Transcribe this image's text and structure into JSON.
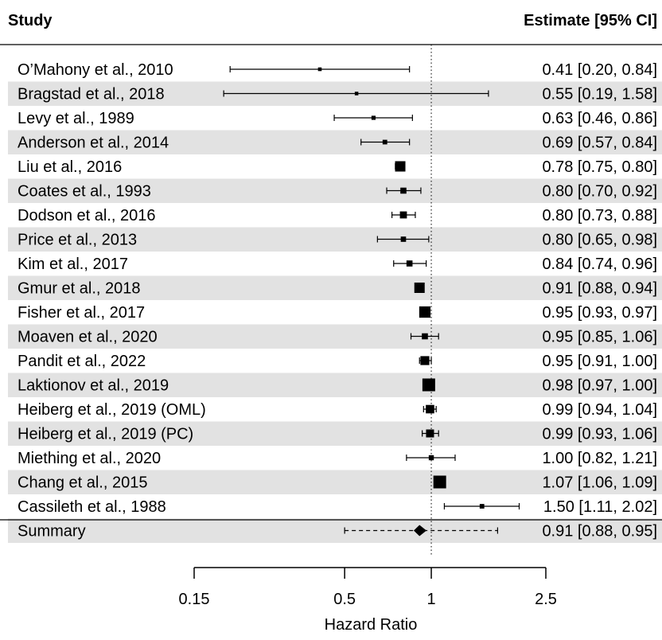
{
  "chart_data": {
    "type": "forest",
    "header": {
      "study": "Study",
      "estimate": "Estimate [95% CI]"
    },
    "xlabel": "Hazard Ratio",
    "x_scale": "log",
    "reference_line": 1,
    "xlim": [
      0.15,
      2.5
    ],
    "ticks": [
      {
        "value": 0.15,
        "label": "0.15"
      },
      {
        "value": 0.5,
        "label": "0.5"
      },
      {
        "value": 1,
        "label": "1"
      },
      {
        "value": 2.5,
        "label": "2.5"
      }
    ],
    "studies": [
      {
        "name": "O’Mahony et al., 2010",
        "est": 0.41,
        "lo": 0.2,
        "hi": 0.84,
        "text": "0.41 [0.20, 0.84]",
        "weight": 0.05
      },
      {
        "name": "Bragstad et al., 2018",
        "est": 0.55,
        "lo": 0.19,
        "hi": 1.58,
        "text": "0.55 [0.19, 1.58]",
        "weight": 0.04
      },
      {
        "name": "Levy et al., 1989",
        "est": 0.63,
        "lo": 0.46,
        "hi": 0.86,
        "text": "0.63 [0.46, 0.86]",
        "weight": 0.1
      },
      {
        "name": "Anderson et al., 2014",
        "est": 0.69,
        "lo": 0.57,
        "hi": 0.84,
        "text": "0.69 [0.57, 0.84]",
        "weight": 0.15
      },
      {
        "name": "Liu et al., 2016",
        "est": 0.78,
        "lo": 0.75,
        "hi": 0.8,
        "text": "0.78 [0.75, 0.80]",
        "weight": 0.75
      },
      {
        "name": "Coates et al., 1993",
        "est": 0.8,
        "lo": 0.7,
        "hi": 0.92,
        "text": "0.80 [0.70, 0.92]",
        "weight": 0.3
      },
      {
        "name": "Dodson et al., 2016",
        "est": 0.8,
        "lo": 0.73,
        "hi": 0.88,
        "text": "0.80 [0.73, 0.88]",
        "weight": 0.4
      },
      {
        "name": "Price et al., 2013",
        "est": 0.8,
        "lo": 0.65,
        "hi": 0.98,
        "text": "0.80 [0.65, 0.98]",
        "weight": 0.22
      },
      {
        "name": "Kim et al., 2017",
        "est": 0.84,
        "lo": 0.74,
        "hi": 0.96,
        "text": "0.84 [0.74, 0.96]",
        "weight": 0.3
      },
      {
        "name": "Gmur et al., 2018",
        "est": 0.91,
        "lo": 0.88,
        "hi": 0.94,
        "text": "0.91 [0.88, 0.94]",
        "weight": 0.75
      },
      {
        "name": "Fisher et al., 2017",
        "est": 0.95,
        "lo": 0.93,
        "hi": 0.97,
        "text": "0.95 [0.93, 0.97]",
        "weight": 0.85
      },
      {
        "name": "Moaven et al., 2020",
        "est": 0.95,
        "lo": 0.85,
        "hi": 1.06,
        "text": "0.95 [0.85, 1.06]",
        "weight": 0.3
      },
      {
        "name": "Pandit et al., 2022",
        "est": 0.95,
        "lo": 0.91,
        "hi": 1.0,
        "text": "0.95 [0.91, 1.00]",
        "weight": 0.6
      },
      {
        "name": "Laktionov et al., 2019",
        "est": 0.98,
        "lo": 0.97,
        "hi": 1.0,
        "text": "0.98 [0.97, 1.00]",
        "weight": 1.0
      },
      {
        "name": "Heiberg et al., 2019 (OML)",
        "est": 0.99,
        "lo": 0.94,
        "hi": 1.04,
        "text": "0.99 [0.94, 1.04]",
        "weight": 0.55
      },
      {
        "name": "Heiberg et al., 2019 (PC)",
        "est": 0.99,
        "lo": 0.93,
        "hi": 1.06,
        "text": "0.99 [0.93, 1.06]",
        "weight": 0.5
      },
      {
        "name": "Miething et al., 2020",
        "est": 1.0,
        "lo": 0.82,
        "hi": 1.21,
        "text": "1.00 [0.82, 1.21]",
        "weight": 0.2
      },
      {
        "name": "Chang et al., 2015",
        "est": 1.07,
        "lo": 1.06,
        "hi": 1.09,
        "text": "1.07 [1.06, 1.09]",
        "weight": 1.0
      },
      {
        "name": "Cassileth et al., 1988",
        "est": 1.5,
        "lo": 1.11,
        "hi": 2.02,
        "text": "1.50 [1.11, 2.02]",
        "weight": 0.15
      }
    ],
    "summary": {
      "name": "Summary",
      "est": 0.91,
      "lo": 0.88,
      "hi": 0.95,
      "pi_lo": 0.5,
      "pi_hi": 1.7,
      "text": "0.91 [0.88, 0.95]"
    },
    "colors": {
      "stripe": "#e2e2e2",
      "ink": "#000000"
    }
  }
}
